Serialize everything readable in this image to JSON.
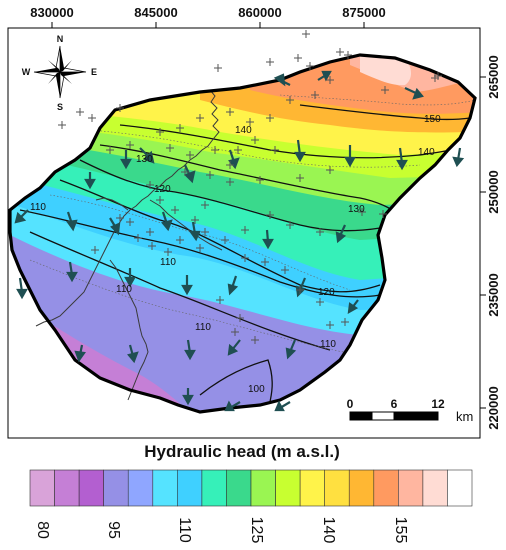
{
  "map": {
    "x_ticks": [
      "830000",
      "845000",
      "860000",
      "875000"
    ],
    "y_ticks": [
      "265000",
      "250000",
      "235000",
      "220000"
    ],
    "compass": {
      "n": "N",
      "s": "S",
      "e": "E",
      "w": "W"
    },
    "contours": [
      "100",
      "110",
      "110",
      "110",
      "120",
      "120",
      "130",
      "130",
      "140",
      "140",
      "150",
      "110",
      "110"
    ],
    "scale": {
      "labels": [
        "0",
        "6",
        "12"
      ],
      "unit": "km"
    }
  },
  "legend": {
    "title": "Hydraulic head (m a.s.l.)",
    "ticks": [
      "80",
      "95",
      "110",
      "125",
      "140",
      "155"
    ],
    "colors": [
      "#d9a3d9",
      "#c57fd6",
      "#b35fd0",
      "#9590e6",
      "#8fa6ff",
      "#55e3ff",
      "#3fd0ff",
      "#36f0b9",
      "#3ad98c",
      "#9af552",
      "#c8ff30",
      "#fff34a",
      "#ffe040",
      "#ffb733",
      "#ff9a60",
      "#ffb6a0",
      "#ffdcd4",
      "#ffffff"
    ]
  },
  "colors": {
    "arrow": "#1f4f52",
    "well_marker": "#555555",
    "boundary": "#000000",
    "river": "#3a3a3a"
  },
  "icons": [
    "compass-rose-icon",
    "flow-arrow-icon",
    "well-marker-icon"
  ]
}
